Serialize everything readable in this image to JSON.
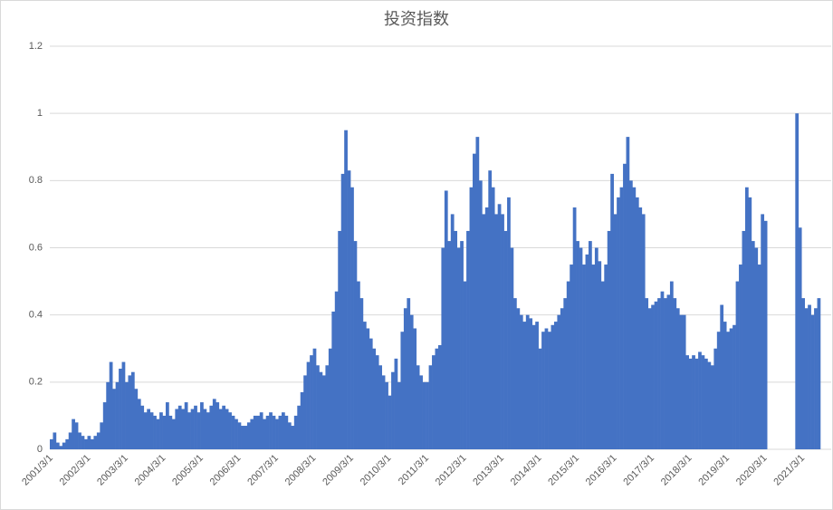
{
  "chart_data": {
    "type": "bar",
    "title": "投资指数",
    "color": "#4472c4",
    "grid": true,
    "ylim": [
      0,
      1.2
    ],
    "yticks": [
      0,
      0.2,
      0.4,
      0.6,
      0.8,
      1,
      1.2
    ],
    "categories": [
      "2001/3/1",
      null,
      null,
      null,
      null,
      null,
      null,
      null,
      null,
      null,
      null,
      null,
      "2002/3/1",
      null,
      null,
      null,
      null,
      null,
      null,
      null,
      null,
      null,
      null,
      null,
      "2003/3/1",
      null,
      null,
      null,
      null,
      null,
      null,
      null,
      null,
      null,
      null,
      null,
      "2004/3/1",
      null,
      null,
      null,
      null,
      null,
      null,
      null,
      null,
      null,
      null,
      null,
      "2005/3/1",
      null,
      null,
      null,
      null,
      null,
      null,
      null,
      null,
      null,
      null,
      null,
      "2006/3/1",
      null,
      null,
      null,
      null,
      null,
      null,
      null,
      null,
      null,
      null,
      null,
      "2007/3/1",
      null,
      null,
      null,
      null,
      null,
      null,
      null,
      null,
      null,
      null,
      null,
      "2008/3/1",
      null,
      null,
      null,
      null,
      null,
      null,
      null,
      null,
      null,
      null,
      null,
      "2009/3/1",
      null,
      null,
      null,
      null,
      null,
      null,
      null,
      null,
      null,
      null,
      null,
      "2010/3/1",
      null,
      null,
      null,
      null,
      null,
      null,
      null,
      null,
      null,
      null,
      null,
      "2011/3/1",
      null,
      null,
      null,
      null,
      null,
      null,
      null,
      null,
      null,
      null,
      null,
      "2012/3/1",
      null,
      null,
      null,
      null,
      null,
      null,
      null,
      null,
      null,
      null,
      null,
      "2013/3/1",
      null,
      null,
      null,
      null,
      null,
      null,
      null,
      null,
      null,
      null,
      null,
      "2014/3/1",
      null,
      null,
      null,
      null,
      null,
      null,
      null,
      null,
      null,
      null,
      null,
      "2015/3/1",
      null,
      null,
      null,
      null,
      null,
      null,
      null,
      null,
      null,
      null,
      null,
      "2016/3/1",
      null,
      null,
      null,
      null,
      null,
      null,
      null,
      null,
      null,
      null,
      null,
      "2017/3/1",
      null,
      null,
      null,
      null,
      null,
      null,
      null,
      null,
      null,
      null,
      null,
      "2018/3/1",
      null,
      null,
      null,
      null,
      null,
      null,
      null,
      null,
      null,
      null,
      null,
      "2019/3/1",
      null,
      null,
      null,
      null,
      null,
      null,
      null,
      null,
      null,
      null,
      null,
      "2020/3/1",
      null,
      null,
      null,
      null,
      null,
      null,
      null,
      null,
      null,
      null,
      null,
      "2021/3/1",
      null,
      null,
      null,
      null,
      null
    ],
    "values": [
      0.03,
      0.05,
      0.02,
      0.01,
      0.02,
      0.03,
      0.05,
      0.09,
      0.08,
      0.05,
      0.04,
      0.03,
      0.04,
      0.03,
      0.04,
      0.05,
      0.08,
      0.14,
      0.2,
      0.26,
      0.18,
      0.2,
      0.24,
      0.26,
      0.2,
      0.22,
      0.23,
      0.18,
      0.15,
      0.13,
      0.11,
      0.12,
      0.11,
      0.1,
      0.09,
      0.11,
      0.1,
      0.14,
      0.1,
      0.09,
      0.12,
      0.13,
      0.12,
      0.14,
      0.11,
      0.12,
      0.13,
      0.11,
      0.14,
      0.12,
      0.11,
      0.13,
      0.15,
      0.14,
      0.12,
      0.13,
      0.12,
      0.11,
      0.1,
      0.09,
      0.08,
      0.07,
      0.07,
      0.08,
      0.09,
      0.1,
      0.1,
      0.11,
      0.09,
      0.1,
      0.11,
      0.1,
      0.09,
      0.1,
      0.11,
      0.1,
      0.08,
      0.07,
      0.1,
      0.13,
      0.17,
      0.22,
      0.26,
      0.28,
      0.3,
      0.25,
      0.23,
      0.22,
      0.25,
      0.3,
      0.41,
      0.47,
      0.65,
      0.82,
      0.95,
      0.83,
      0.78,
      0.62,
      0.5,
      0.45,
      0.38,
      0.36,
      0.33,
      0.3,
      0.28,
      0.25,
      0.22,
      0.2,
      0.16,
      0.23,
      0.27,
      0.2,
      0.35,
      0.42,
      0.45,
      0.4,
      0.36,
      0.25,
      0.22,
      0.2,
      0.2,
      0.25,
      0.28,
      0.3,
      0.31,
      0.6,
      0.77,
      0.62,
      0.7,
      0.65,
      0.6,
      0.62,
      0.5,
      0.65,
      0.78,
      0.88,
      0.93,
      0.8,
      0.7,
      0.72,
      0.83,
      0.78,
      0.7,
      0.73,
      0.7,
      0.65,
      0.75,
      0.6,
      0.45,
      0.42,
      0.4,
      0.38,
      0.4,
      0.39,
      0.37,
      0.38,
      0.3,
      0.35,
      0.36,
      0.35,
      0.37,
      0.38,
      0.4,
      0.42,
      0.45,
      0.5,
      0.55,
      0.72,
      0.62,
      0.6,
      0.55,
      0.58,
      0.62,
      0.55,
      0.6,
      0.56,
      0.5,
      0.55,
      0.65,
      0.82,
      0.7,
      0.75,
      0.78,
      0.85,
      0.93,
      0.8,
      0.78,
      0.75,
      0.72,
      0.7,
      0.45,
      0.42,
      0.43,
      0.44,
      0.45,
      0.47,
      0.45,
      0.46,
      0.5,
      0.45,
      0.42,
      0.4,
      0.4,
      0.28,
      0.27,
      0.28,
      0.27,
      0.29,
      0.28,
      0.27,
      0.26,
      0.25,
      0.3,
      0.35,
      0.43,
      0.38,
      0.35,
      0.36,
      0.37,
      0.5,
      0.55,
      0.65,
      0.78,
      0.75,
      0.62,
      0.6,
      0.55,
      0.7,
      0.68,
      null,
      null,
      null,
      null,
      null,
      null,
      null,
      null,
      null,
      1.0,
      0.66,
      0.45,
      0.42,
      0.43,
      0.4,
      0.42,
      0.45
    ]
  }
}
